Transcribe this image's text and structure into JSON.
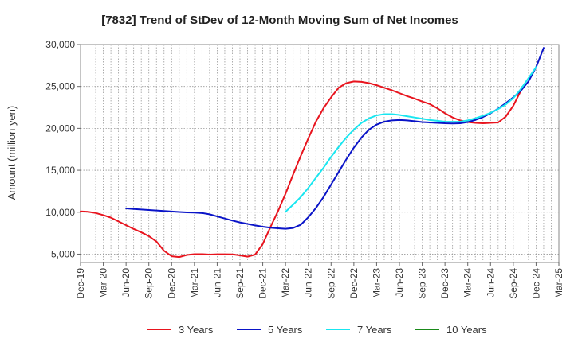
{
  "chart_data": {
    "type": "line",
    "title": "[7832]  Trend of StDev of 12-Month Moving Sum of Net Incomes",
    "xlabel": "",
    "ylabel": "Amount (million yen)",
    "ylim": [
      4000,
      30000
    ],
    "yticks": [
      5000,
      10000,
      15000,
      20000,
      25000,
      30000
    ],
    "ytick_labels": [
      "5,000",
      "10,000",
      "15,000",
      "20,000",
      "25,000",
      "30,000"
    ],
    "x_categories": [
      "Dec-19",
      "Mar-20",
      "Jun-20",
      "Sep-20",
      "Dec-20",
      "Mar-21",
      "Jun-21",
      "Sep-21",
      "Dec-21",
      "Mar-22",
      "Jun-22",
      "Sep-22",
      "Dec-22",
      "Mar-23",
      "Jun-23",
      "Sep-23",
      "Dec-23",
      "Mar-24",
      "Jun-24",
      "Sep-24",
      "Dec-24",
      "Mar-25"
    ],
    "grid": true,
    "legend_position": "bottom",
    "series": [
      {
        "name": "3 Years",
        "color": "#e8141e",
        "start_index": 0,
        "values": [
          10100,
          10050,
          9900,
          9650,
          9350,
          8900,
          8450,
          8000,
          7600,
          7150,
          6500,
          5400,
          4750,
          4650,
          4900,
          5000,
          5000,
          4950,
          4980,
          4990,
          4970,
          4850,
          4700,
          4950,
          6200,
          8200,
          10100,
          12200,
          14500,
          16700,
          18800,
          20800,
          22400,
          23700,
          24850,
          25400,
          25600,
          25550,
          25400,
          25150,
          24850,
          24550,
          24200,
          23850,
          23550,
          23200,
          22900,
          22400,
          21800,
          21300,
          20950,
          20750,
          20650,
          20600,
          20650,
          20700,
          21400,
          22700,
          24500
        ]
      },
      {
        "name": "5 Years",
        "color": "#0a14c8",
        "start_index": 6,
        "values": [
          10450,
          10380,
          10320,
          10260,
          10200,
          10140,
          10080,
          10020,
          9980,
          9950,
          9900,
          9750,
          9500,
          9250,
          9000,
          8780,
          8600,
          8420,
          8270,
          8150,
          8080,
          8020,
          8120,
          8500,
          9400,
          10500,
          11800,
          13300,
          14800,
          16300,
          17700,
          18900,
          19850,
          20450,
          20800,
          20950,
          21000,
          20950,
          20850,
          20750,
          20700,
          20650,
          20600,
          20580,
          20600,
          20750,
          21000,
          21350,
          21800,
          22350,
          23000,
          23700,
          24500,
          25600,
          27300,
          29600
        ]
      },
      {
        "name": "7 Years",
        "color": "#19e6f0",
        "start_index": 27,
        "values": [
          10050,
          10900,
          11800,
          12900,
          14100,
          15300,
          16600,
          17800,
          18900,
          19850,
          20650,
          21200,
          21550,
          21700,
          21700,
          21600,
          21450,
          21300,
          21150,
          21000,
          20900,
          20800,
          20780,
          20800,
          20950,
          21200,
          21500,
          21850,
          22300,
          22850,
          23600,
          24700,
          26000,
          27300
        ]
      },
      {
        "name": "10 Years",
        "color": "#1a8a1a",
        "start_index": 0,
        "values": []
      }
    ]
  }
}
